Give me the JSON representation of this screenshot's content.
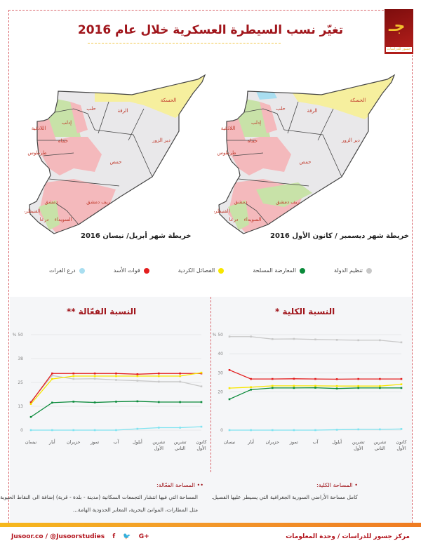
{
  "header": {
    "title": "تغيّر نسب السيطرة العسكرية خلال عام 2016",
    "logo_text": "جسور للدراسات"
  },
  "maps": [
    {
      "caption": "خريطة شهر أبريل/ نيسان 2016"
    },
    {
      "caption": "خريطة شهر ديسمبر / كانون الأول 2016"
    }
  ],
  "map_labels": [
    "الحسكة",
    "الرقة",
    "حلب",
    "إدلب",
    "اللاذقية",
    "حماه",
    "طرطوس",
    "حمص",
    "دير الزور",
    "دمشق",
    "ريف دمشق",
    "القنيطرة",
    "درعا",
    "السويداء"
  ],
  "legend": [
    {
      "label": "تنظيم الدولة",
      "color": "#c8c8c8"
    },
    {
      "label": "المعارضة المسلحة",
      "color": "#0a8a3a"
    },
    {
      "label": "الفصائل الكردية",
      "color": "#f7e600"
    },
    {
      "label": "قوات الأسد",
      "color": "#e31e1e"
    },
    {
      "label": "درع الفرات",
      "color": "#a9def0"
    }
  ],
  "chart_data": [
    {
      "type": "line",
      "title": "النسبة الكلية *",
      "ylim": [
        0,
        50
      ],
      "yticks": [
        "0",
        "20",
        "30",
        "40",
        "% 50"
      ],
      "ytick_values": [
        0,
        20,
        30,
        40,
        50
      ],
      "grid": true,
      "categories": [
        "نيسان",
        "أيار",
        "حزيران",
        "تموز",
        "آب",
        "أيلول",
        "تشرين الأول",
        "تشرين الثاني",
        "كانون الأول"
      ],
      "series": [
        {
          "name": "تنظيم الدولة",
          "color": "#c8c8c8",
          "values": [
            49,
            49,
            47.7,
            47.8,
            47.5,
            47.3,
            47.1,
            47.1,
            46
          ]
        },
        {
          "name": "قوات الأسد",
          "color": "#e31e1e",
          "values": [
            31.5,
            26.8,
            26.8,
            26.9,
            26.8,
            26.7,
            26.8,
            26.8,
            26.8
          ]
        },
        {
          "name": "الفصائل الكردية",
          "color": "#f7e600",
          "values": [
            22,
            22.5,
            23.2,
            23.2,
            23.2,
            23.1,
            23.1,
            23.1,
            24
          ]
        },
        {
          "name": "المعارضة المسلحة",
          "color": "#0a8a3a",
          "values": [
            16.2,
            21.2,
            22.1,
            22.1,
            22.2,
            21.8,
            22.1,
            22.1,
            22.1
          ]
        },
        {
          "name": "درع الفرات",
          "color": "#7fe3f0",
          "values": [
            0,
            0,
            0,
            0,
            0,
            0.2,
            0.4,
            0.4,
            0.6
          ]
        }
      ]
    },
    {
      "type": "line",
      "title": "النسبة الفعّالة **",
      "ylim": [
        0,
        50
      ],
      "yticks": [
        "0",
        "13",
        "25",
        "38",
        "% 50"
      ],
      "ytick_values": [
        0,
        12.5,
        25,
        37.5,
        50
      ],
      "grid": true,
      "categories": [
        "نيسان",
        "أيار",
        "حزيران",
        "تموز",
        "آب",
        "أيلول",
        "تشرين الأول",
        "تشرين الثاني",
        "كانون الأول"
      ],
      "series": [
        {
          "name": "تنظيم الدولة",
          "color": "#c8c8c8",
          "values": [
            14.9,
            28.6,
            26.8,
            26.9,
            26.3,
            25.9,
            25.4,
            25.4,
            22.9
          ]
        },
        {
          "name": "قوات الأسد",
          "color": "#e31e1e",
          "values": [
            14.5,
            29.7,
            29.7,
            29.7,
            29.7,
            29.3,
            29.7,
            29.7,
            29.7
          ]
        },
        {
          "name": "الفصائل الكردية",
          "color": "#f7e600",
          "values": [
            13.7,
            26.8,
            28.3,
            28.3,
            28.3,
            28.3,
            28.3,
            28.3,
            30.1
          ]
        },
        {
          "name": "المعارضة المسلحة",
          "color": "#0a8a3a",
          "values": [
            6.9,
            14.4,
            14.9,
            14.5,
            14.9,
            15.1,
            14.7,
            14.7,
            14.7
          ]
        },
        {
          "name": "درع الفرات",
          "color": "#7fe3f0",
          "values": [
            0,
            0,
            0,
            0,
            0,
            0.7,
            1.3,
            1.3,
            1.8
          ]
        }
      ]
    }
  ],
  "notes": {
    "total_title": "• المساحة الكلية:",
    "total_text": "كامل مساحة الأراضي السورية الجغرافية التي يسيطر عليها الفصيل.",
    "effective_title": "•• المساحة الفعّالة:",
    "effective_text1": "المساحة التي فيها انتشار التجمعات السكانية (مدينة - بلدة - قرية) إضافة الى النقاط الحيوية",
    "effective_text2": "مثل المطارات، الموانئ البحرية، المعابر الحدودية الهامة..."
  },
  "footer": {
    "site": "Jusoor.co",
    "handle": "@Jusoorstudies",
    "social": [
      "f",
      "🐦",
      "G+"
    ],
    "org": "مركز جسور للدراسات",
    "sep": "/",
    "unit": "وحدة المعلومات"
  }
}
